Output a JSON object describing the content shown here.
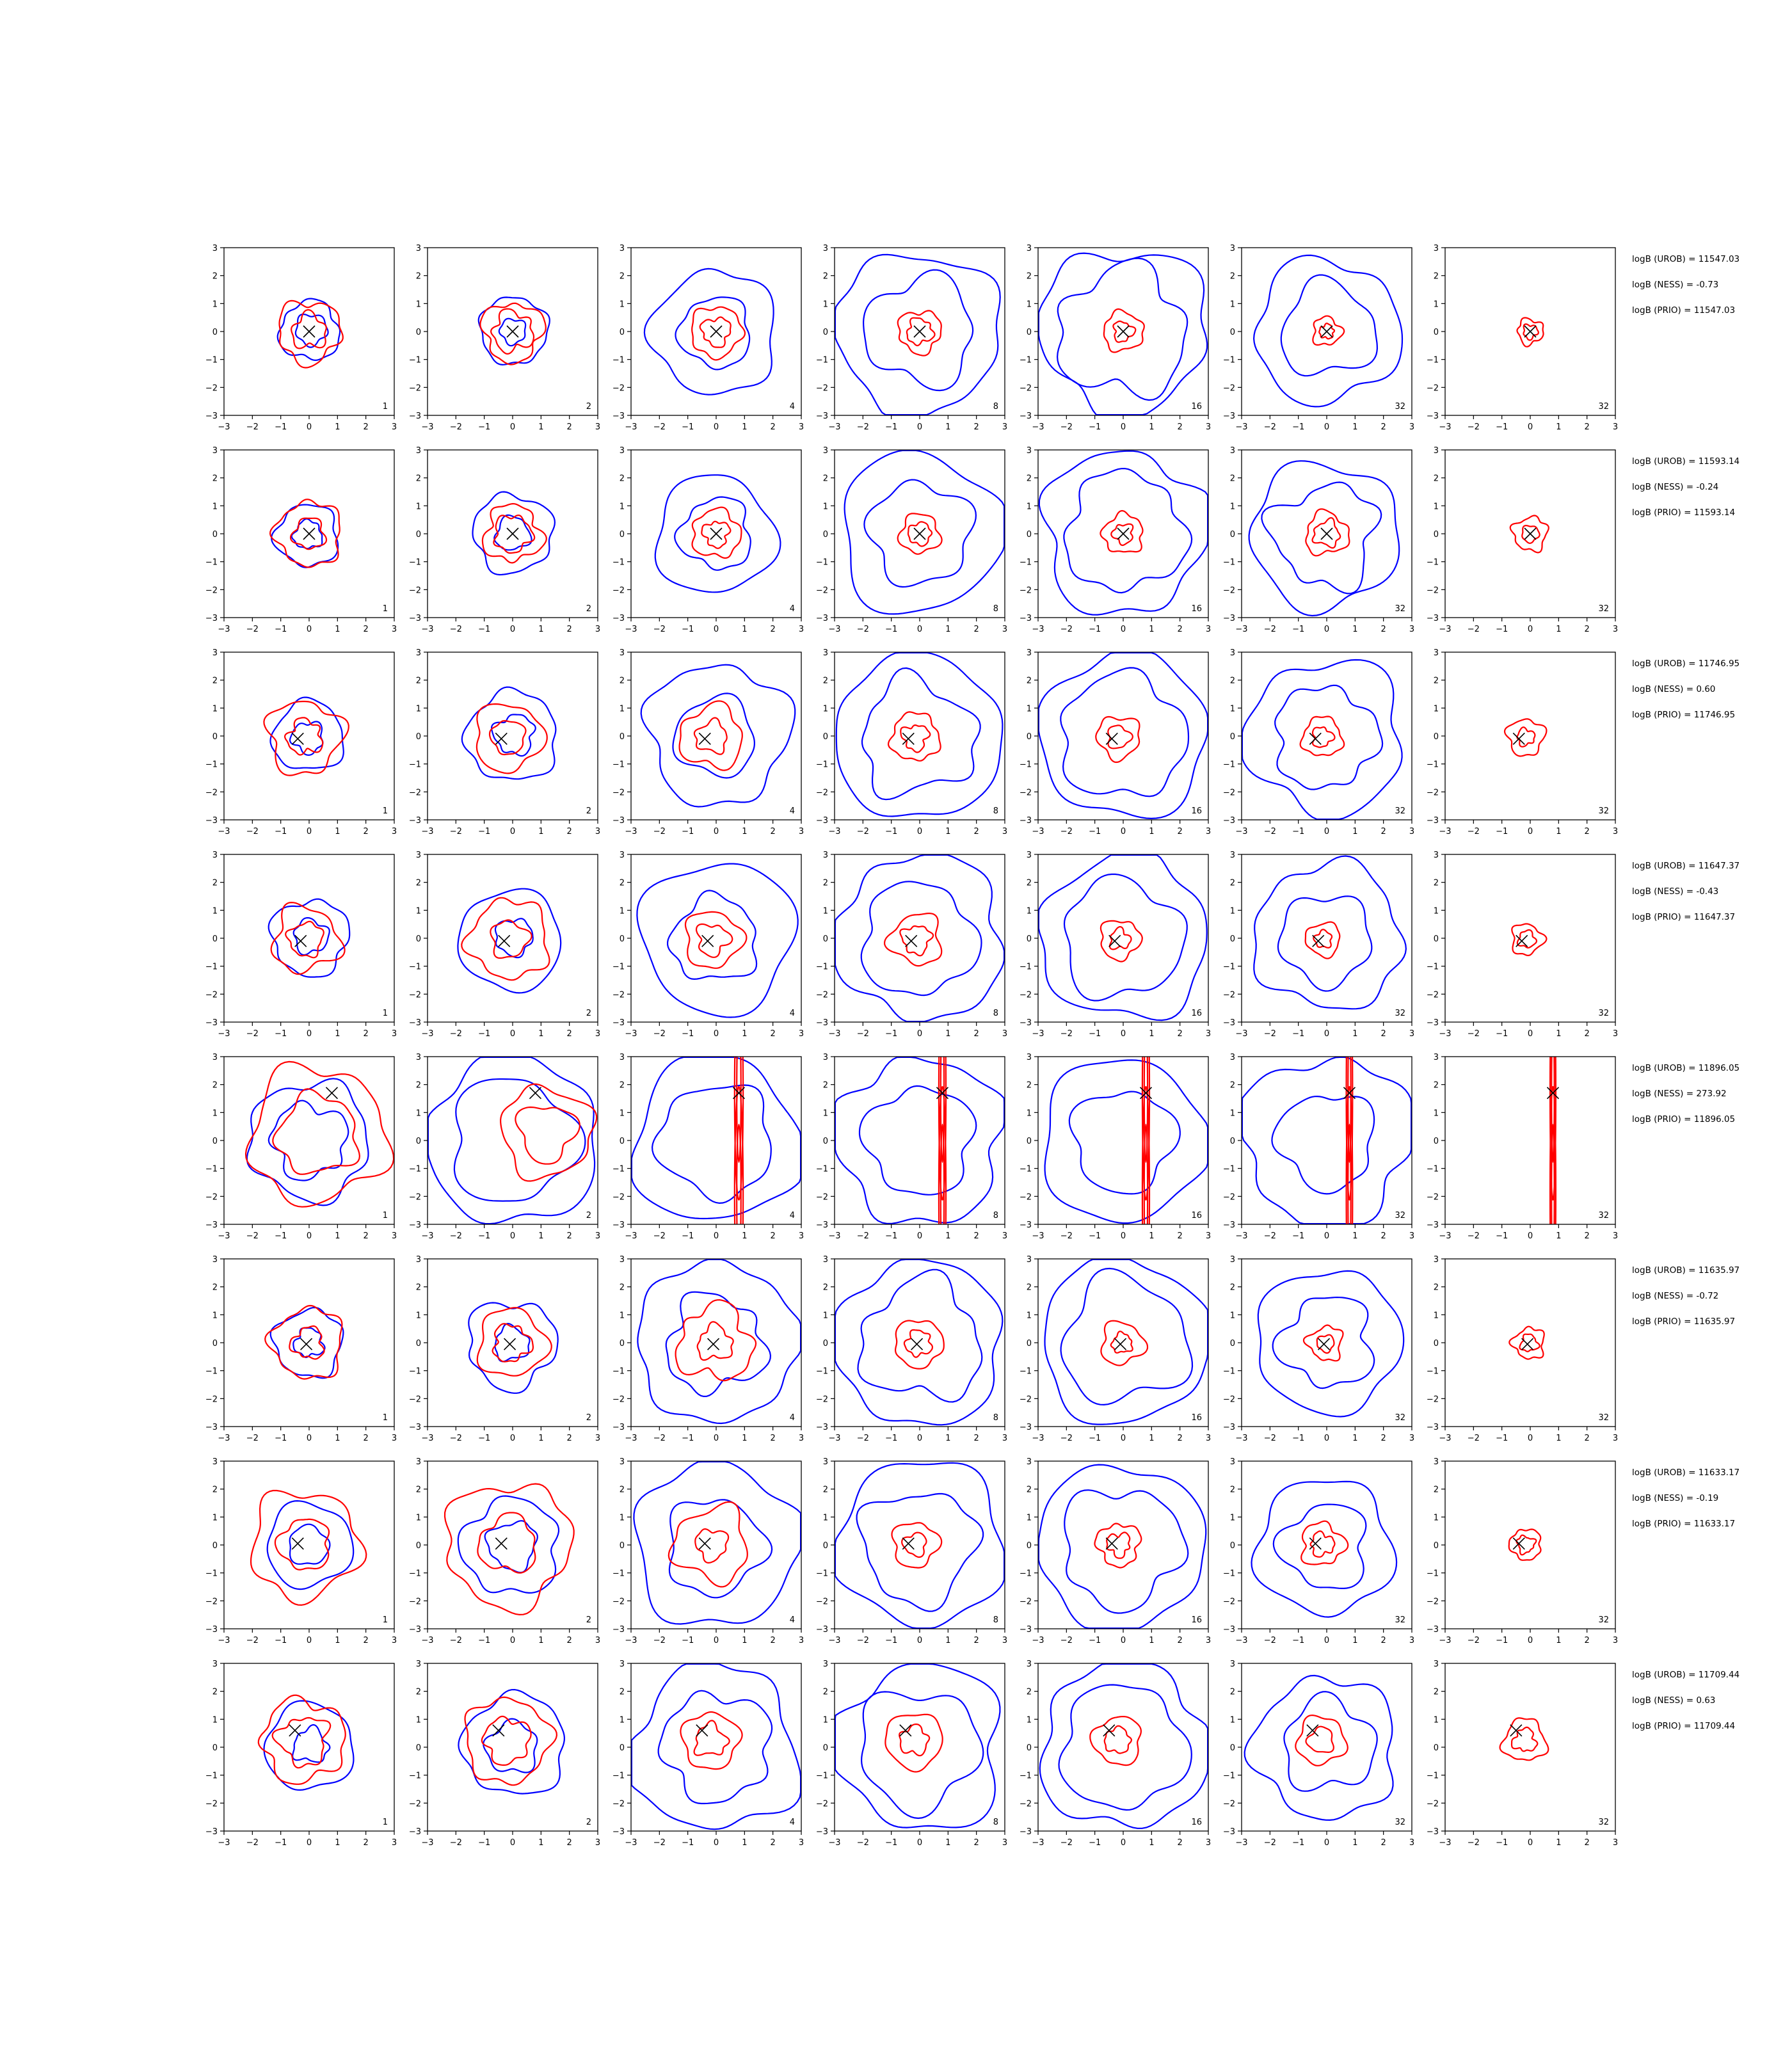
{
  "chart_data": {
    "type": "contour",
    "title": "",
    "xlabel": "",
    "ylabel": "",
    "xlim": [
      -3,
      3
    ],
    "ylim": [
      -3,
      3
    ],
    "ticks": [
      "-3",
      "-2",
      "-1",
      "0",
      "1",
      "2",
      "3"
    ],
    "grid": false,
    "legend": "none",
    "colors": {
      "outer_contour": "#0000ff",
      "inner_contour": "#ff0000",
      "marker": "#000000"
    },
    "column_labels": [
      "1",
      "2",
      "4",
      "8",
      "16",
      "32",
      "32"
    ],
    "rows": [
      {
        "marker": [
          0.0,
          0.0
        ],
        "stats": [
          "logB (UROB) = 11547.03",
          "logB (NESS) = -0.73",
          "logB (PRIO) = 11547.03"
        ],
        "contours": [
          {
            "blue": [
              1.05,
              0.55
            ],
            "red": [
              1.1,
              0.6
            ]
          },
          {
            "blue": [
              1.2,
              0.45
            ],
            "red": [
              1.05,
              0.7
            ]
          },
          {
            "blue": [
              2.2,
              1.25
            ],
            "red": [
              0.9,
              0.5
            ]
          },
          {
            "blue": [
              2.9,
              1.9
            ],
            "red": [
              0.75,
              0.45
            ]
          },
          {
            "blue": [
              2.95,
              2.25
            ],
            "red": [
              0.7,
              0.35
            ]
          },
          {
            "blue": [
              2.55,
              1.65
            ],
            "red": [
              0.5,
              0.25
            ]
          },
          {
            "blue": [],
            "red": [
              0.45,
              0.25
            ]
          }
        ]
      },
      {
        "marker": [
          0.0,
          0.0
        ],
        "stats": [
          "logB (UROB) = 11593.14",
          "logB (NESS) = -0.24",
          "logB (PRIO) = 11593.14"
        ],
        "contours": [
          {
            "blue": [
              1.1,
              0.5
            ],
            "red": [
              1.15,
              0.55
            ]
          },
          {
            "blue": [
              1.4,
              0.6
            ],
            "red": [
              1.0,
              0.65
            ]
          },
          {
            "blue": [
              2.1,
              1.25
            ],
            "red": [
              0.85,
              0.45
            ]
          },
          {
            "blue": [
              2.85,
              1.8
            ],
            "red": [
              0.7,
              0.4
            ]
          },
          {
            "blue": [
              2.9,
              2.1
            ],
            "red": [
              0.7,
              0.35
            ]
          },
          {
            "blue": [
              2.6,
              1.8
            ],
            "red": [
              0.75,
              0.45
            ]
          },
          {
            "blue": [],
            "red": [
              0.6,
              0.3
            ]
          }
        ]
      },
      {
        "marker": [
          -0.4,
          -0.1
        ],
        "stats": [
          "logB (UROB) = 11746.95",
          "logB (NESS) = 0.60",
          "logB (PRIO) = 11746.95"
        ],
        "contours": [
          {
            "blue": [
              1.25,
              0.55
            ],
            "red": [
              1.3,
              0.6
            ]
          },
          {
            "blue": [
              1.6,
              0.7
            ],
            "red": [
              1.2,
              0.6
            ]
          },
          {
            "blue": [
              2.5,
              1.4
            ],
            "red": [
              1.1,
              0.55
            ]
          },
          {
            "blue": [
              2.95,
              2.0
            ],
            "red": [
              0.85,
              0.45
            ]
          },
          {
            "blue": [
              2.95,
              2.2
            ],
            "red": [
              0.75,
              0.4
            ]
          },
          {
            "blue": [
              2.75,
              1.8
            ],
            "red": [
              0.7,
              0.35
            ]
          },
          {
            "blue": [],
            "red": [
              0.65,
              0.3
            ]
          }
        ]
      },
      {
        "marker": [
          -0.3,
          -0.1
        ],
        "stats": [
          "logB (UROB) = 11647.37",
          "logB (NESS) = -0.43",
          "logB (PRIO) = 11647.37"
        ],
        "contours": [
          {
            "blue": [
              1.35,
              0.6
            ],
            "red": [
              1.15,
              0.6
            ]
          },
          {
            "blue": [
              1.8,
              0.65
            ],
            "red": [
              1.4,
              0.65
            ]
          },
          {
            "blue": [
              2.7,
              1.5
            ],
            "red": [
              1.0,
              0.55
            ]
          },
          {
            "blue": [
              2.95,
              2.0
            ],
            "red": [
              0.9,
              0.5
            ]
          },
          {
            "blue": [
              2.95,
              2.1
            ],
            "red": [
              0.7,
              0.35
            ]
          },
          {
            "blue": [
              2.6,
              1.6
            ],
            "red": [
              0.6,
              0.3
            ]
          },
          {
            "blue": [],
            "red": [
              0.55,
              0.3
            ]
          }
        ]
      },
      {
        "marker": [
          0.8,
          1.7
        ],
        "stats": [
          "logB (UROB) = 11896.05",
          "logB (NESS) = 273.92",
          "logB (PRIO) = 11896.05"
        ],
        "contours": [
          {
            "blue": [
              2.1,
              1.3
            ],
            "red": [
              2.4,
              1.4
            ]
          },
          {
            "blue": [
              3.0,
              2.2
            ],
            "red": [
              1.6,
              1.0
            ]
          },
          {
            "blue": [
              2.95,
              2.0
            ],
            "red": [
              0.3,
              0.15
            ]
          },
          {
            "blue": [
              2.95,
              1.9
            ],
            "red": [
              0.25,
              0.12
            ]
          },
          {
            "blue": [
              2.9,
              1.8
            ],
            "red": [
              0.25,
              0.12
            ]
          },
          {
            "blue": [
              3.0,
              1.7
            ],
            "red": [
              0.22,
              0.1
            ]
          },
          {
            "blue": [],
            "red": [
              0.2,
              0.1
            ]
          }
        ]
      },
      {
        "marker": [
          -0.1,
          -0.05
        ],
        "stats": [
          "logB (UROB) = 11635.97",
          "logB (NESS) = -0.72",
          "logB (PRIO) = 11635.97"
        ],
        "contours": [
          {
            "blue": [
              1.2,
              0.5
            ],
            "red": [
              1.25,
              0.55
            ]
          },
          {
            "blue": [
              1.55,
              0.6
            ],
            "red": [
              1.2,
              0.65
            ]
          },
          {
            "blue": [
              2.85,
              1.7
            ],
            "red": [
              1.3,
              0.6
            ]
          },
          {
            "blue": [
              2.95,
              2.1
            ],
            "red": [
              0.85,
              0.45
            ]
          },
          {
            "blue": [
              2.95,
              2.2
            ],
            "red": [
              0.75,
              0.35
            ]
          },
          {
            "blue": [
              2.55,
              1.6
            ],
            "red": [
              0.6,
              0.3
            ]
          },
          {
            "blue": [],
            "red": [
              0.55,
              0.3
            ]
          }
        ]
      },
      {
        "marker": [
          -0.4,
          0.05
        ],
        "stats": [
          "logB (UROB) = 11633.17",
          "logB (NESS) = -0.19",
          "logB (PRIO) = 11633.17"
        ],
        "contours": [
          {
            "blue": [
              1.5,
              0.7
            ],
            "red": [
              1.9,
              0.9
            ]
          },
          {
            "blue": [
              1.7,
              0.85
            ],
            "red": [
              2.2,
              1.0
            ]
          },
          {
            "blue": [
              2.9,
              1.7
            ],
            "red": [
              1.3,
              0.55
            ]
          },
          {
            "blue": [
              2.95,
              2.0
            ],
            "red": [
              0.8,
              0.4
            ]
          },
          {
            "blue": [
              2.95,
              2.1
            ],
            "red": [
              0.75,
              0.4
            ]
          },
          {
            "blue": [
              2.4,
              1.5
            ],
            "red": [
              0.75,
              0.4
            ]
          },
          {
            "blue": [],
            "red": [
              0.55,
              0.3
            ]
          }
        ]
      },
      {
        "marker": [
          -0.5,
          0.6
        ],
        "stats": [
          "logB (UROB) = 11709.44",
          "logB (NESS) = 0.63",
          "logB (PRIO) = 11709.44"
        ],
        "contours": [
          {
            "blue": [
              1.55,
              0.6
            ],
            "red": [
              1.45,
              0.85
            ]
          },
          {
            "blue": [
              1.8,
              0.9
            ],
            "red": [
              1.5,
              0.8
            ]
          },
          {
            "blue": [
              2.95,
              1.9
            ],
            "red": [
              1.0,
              0.55
            ]
          },
          {
            "blue": [
              2.95,
              2.1
            ],
            "red": [
              1.0,
              0.5
            ]
          },
          {
            "blue": [
              2.95,
              2.2
            ],
            "red": [
              0.85,
              0.45
            ]
          },
          {
            "blue": [
              2.5,
              1.6
            ],
            "red": [
              0.85,
              0.45
            ]
          },
          {
            "blue": [],
            "red": [
              0.75,
              0.4
            ]
          }
        ]
      }
    ]
  }
}
